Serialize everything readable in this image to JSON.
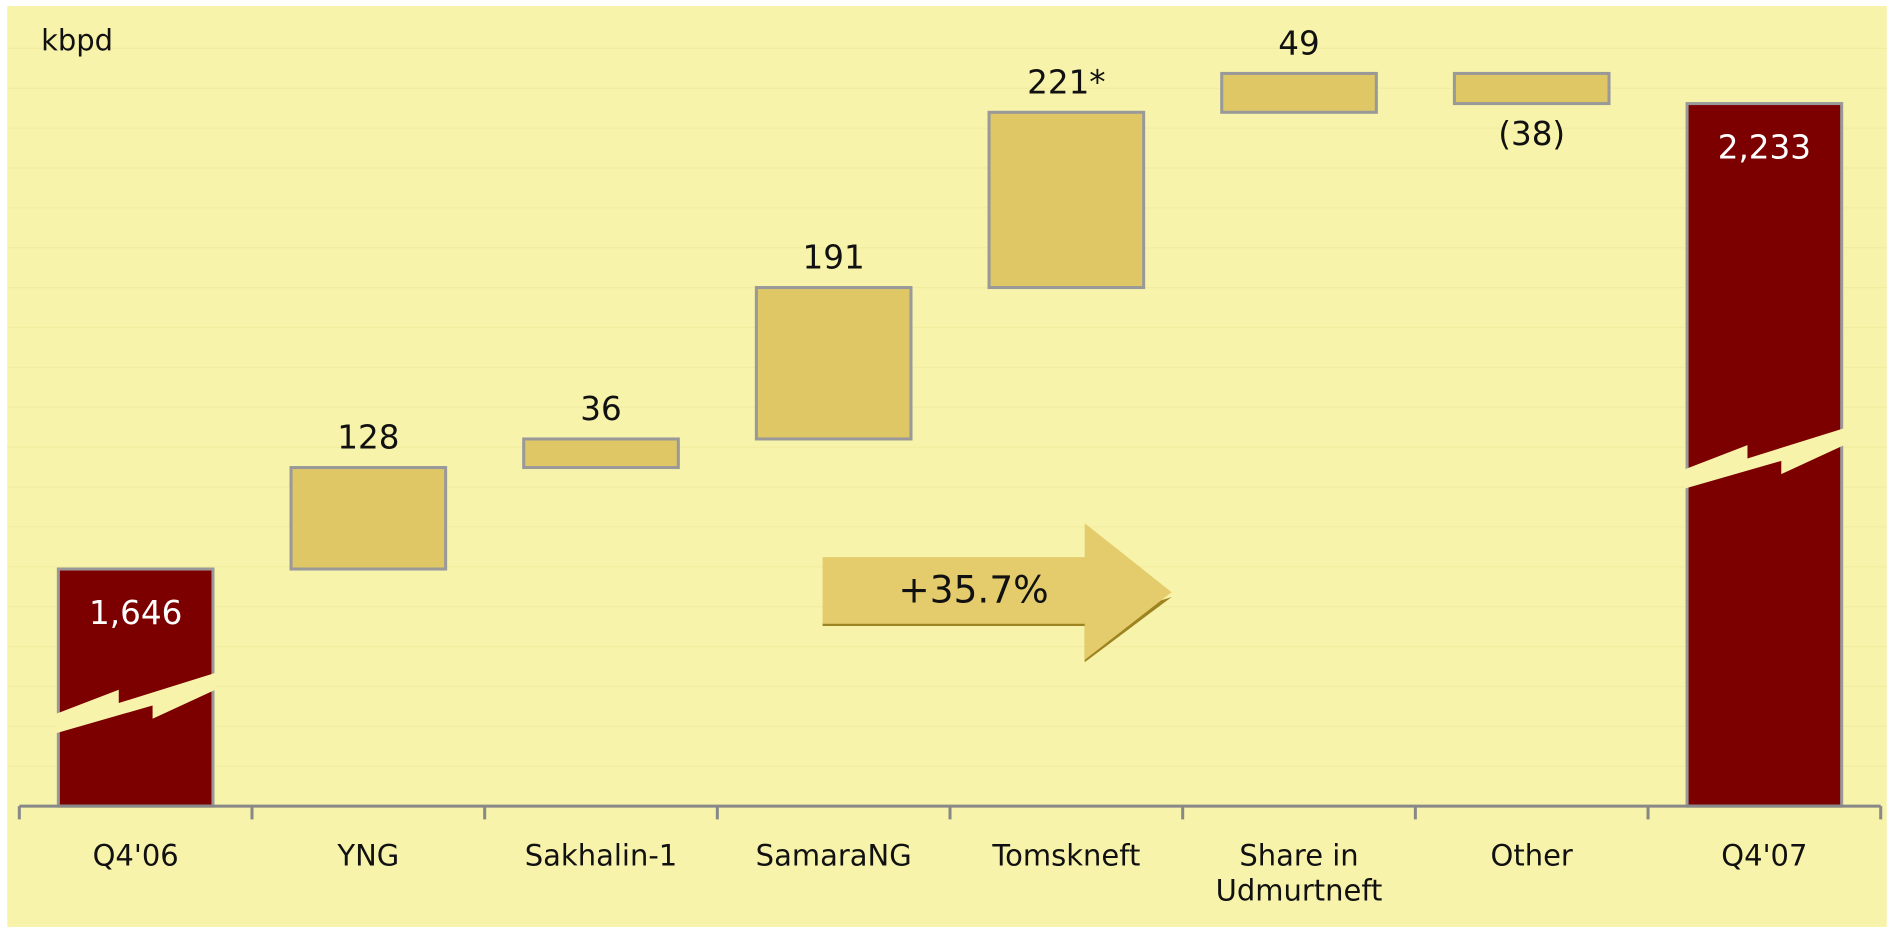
{
  "chart_data": {
    "type": "waterfall",
    "axis_label": "kbpd",
    "annotation": "+35.7%",
    "categories": [
      "Q4'06",
      "YNG",
      "Sakhalin-1",
      "SamaraNG",
      "Tomskneft",
      "Share in Udmurtneft",
      "Other",
      "Q4'07"
    ],
    "measure": [
      "total",
      "relative",
      "relative",
      "relative",
      "relative",
      "relative",
      "relative",
      "total"
    ],
    "values": [
      1646,
      128,
      36,
      191,
      221,
      49,
      -38,
      2233
    ],
    "value_labels": [
      "1,646",
      "128",
      "36",
      "191",
      "221*",
      "49",
      "(38)",
      "2,233"
    ],
    "total_color": "#7d0000",
    "color": "#dfc766",
    "ylim": [
      1347,
      2356
    ]
  }
}
